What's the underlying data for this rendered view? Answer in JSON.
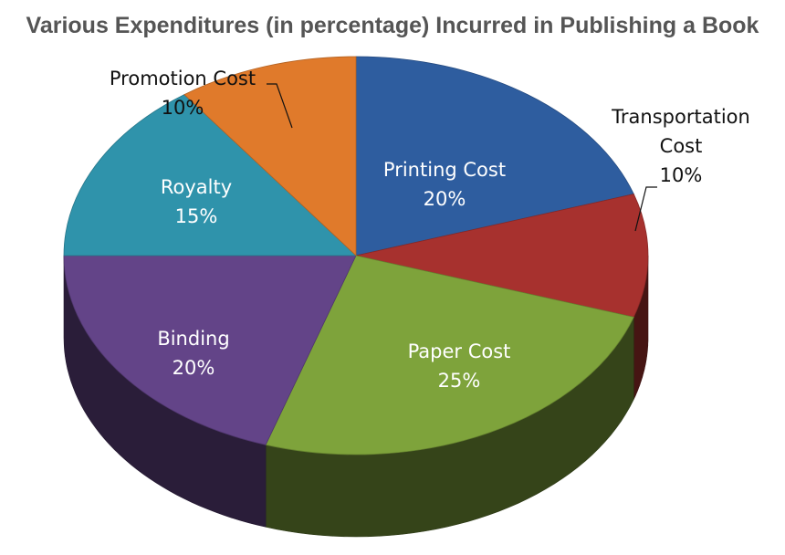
{
  "chart_data": {
    "type": "pie",
    "title": "Various Expenditures (in percentage) Incurred in Publishing a Book",
    "slices": [
      {
        "name": "Printing Cost",
        "value": 20,
        "value_label": "20%",
        "color": "#2e5d9f",
        "label_lines": [
          "Printing Cost"
        ]
      },
      {
        "name": "Transportation Cost",
        "value": 10,
        "value_label": "10%",
        "color": "#a7312e",
        "label_lines": [
          "Transportation",
          "Cost"
        ]
      },
      {
        "name": "Paper Cost",
        "value": 25,
        "value_label": "25%",
        "color": "#7ea33b",
        "label_lines": [
          "Paper Cost"
        ]
      },
      {
        "name": "Binding",
        "value": 20,
        "value_label": "20%",
        "color": "#634488",
        "label_lines": [
          "Binding"
        ]
      },
      {
        "name": "Royalty",
        "value": 15,
        "value_label": "15%",
        "color": "#2f93ab",
        "label_lines": [
          "Royalty"
        ]
      },
      {
        "name": "Promotion Cost",
        "value": 10,
        "value_label": "10%",
        "color": "#e07a2b",
        "label_lines": [
          "Promotion Cost"
        ]
      }
    ]
  }
}
